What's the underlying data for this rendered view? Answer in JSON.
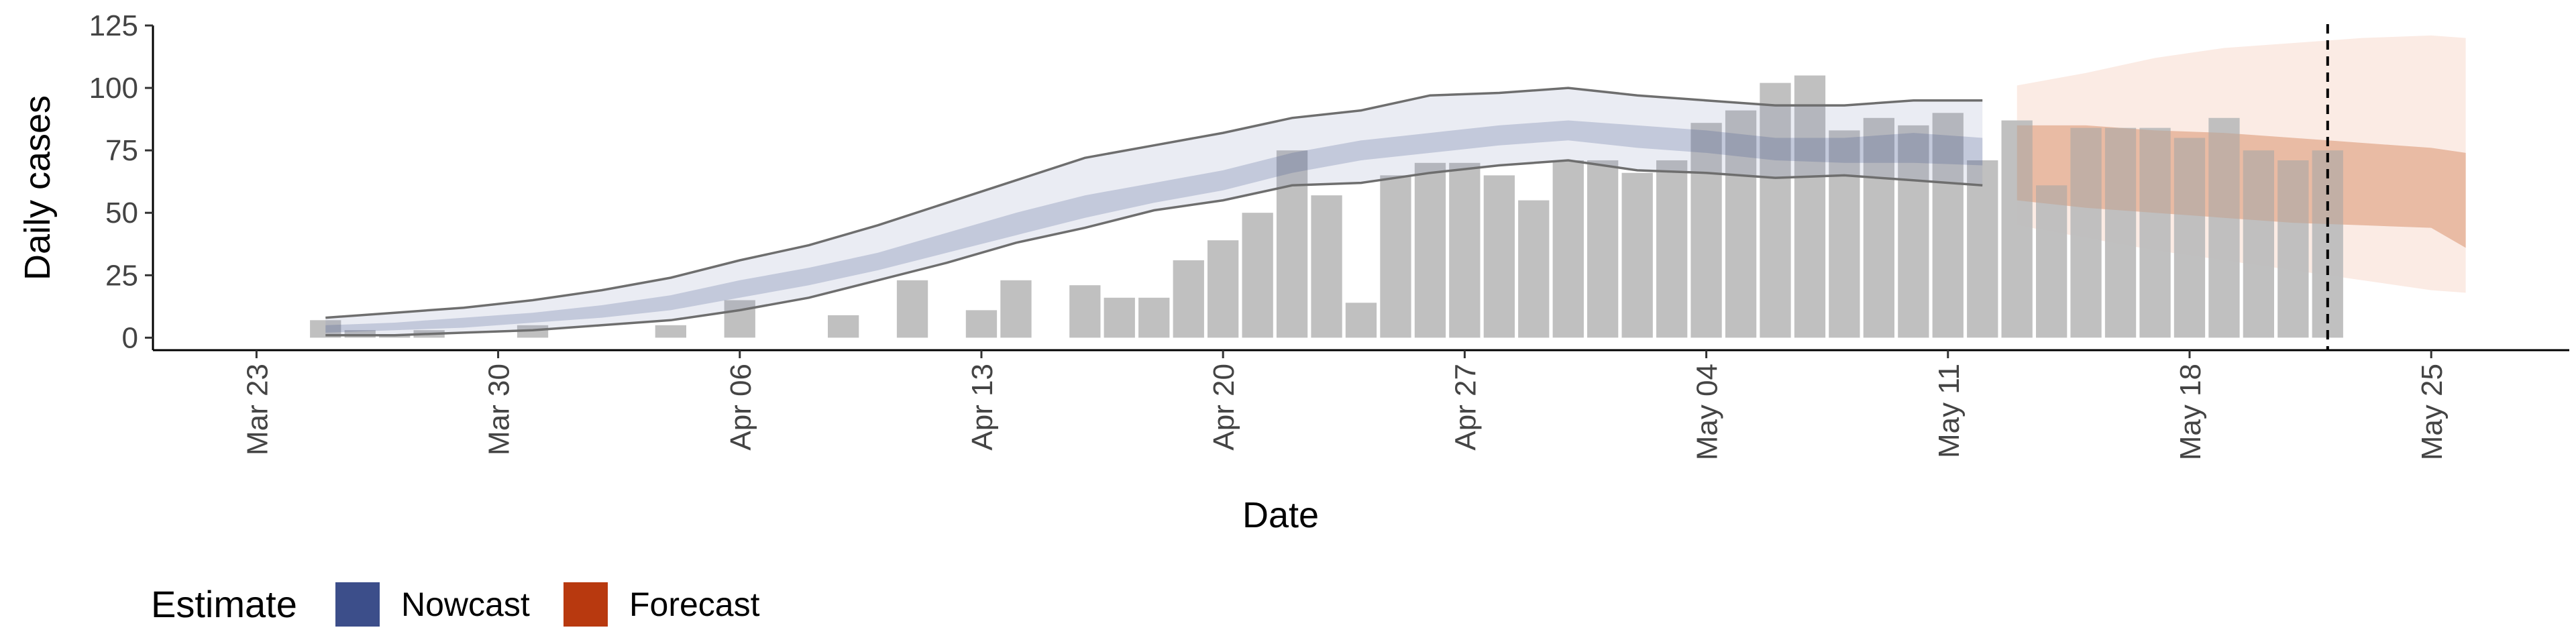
{
  "chart_data": {
    "type": "bar",
    "title": "",
    "xlabel": "Date",
    "ylabel": "Daily cases",
    "ylim": [
      -5,
      125
    ],
    "y_ticks": [
      0,
      25,
      50,
      75,
      100,
      125
    ],
    "xlim": [
      "2020-03-20",
      "2020-05-29"
    ],
    "x_ticks": [
      "2020-03-23",
      "2020-03-30",
      "2020-04-06",
      "2020-04-13",
      "2020-04-20",
      "2020-04-27",
      "2020-05-04",
      "2020-05-11",
      "2020-05-18",
      "2020-05-25"
    ],
    "x_tick_labels": [
      "Mar 23",
      "Mar 30",
      "Apr 06",
      "Apr 13",
      "Apr 20",
      "Apr 27",
      "May 04",
      "May 11",
      "May 18",
      "May 25"
    ],
    "vline_date": "2020-05-22",
    "grid": false,
    "legend": {
      "title": "Estimate",
      "placement": "bottom-left",
      "items": [
        {
          "label": "Nowcast",
          "color": "#3C4E8A"
        },
        {
          "label": "Forecast",
          "color": "#B8390F"
        }
      ]
    },
    "colors": {
      "bar": "#BDBDBD",
      "nowcast_outer": "#E7E9F1",
      "nowcast_inner": "#C5CCDE",
      "nowcast_line": "#6E6E6E",
      "forecast_outer": "#FBEBE4",
      "forecast_inner": "#F2CDBB",
      "vline": "#000000"
    },
    "bars": {
      "name": "Daily cases",
      "x": [
        "2020-03-25",
        "2020-03-26",
        "2020-03-27",
        "2020-03-28",
        "2020-03-29",
        "2020-03-30",
        "2020-03-31",
        "2020-04-01",
        "2020-04-02",
        "2020-04-03",
        "2020-04-04",
        "2020-04-05",
        "2020-04-06",
        "2020-04-07",
        "2020-04-08",
        "2020-04-09",
        "2020-04-10",
        "2020-04-11",
        "2020-04-12",
        "2020-04-13",
        "2020-04-14",
        "2020-04-15",
        "2020-04-16",
        "2020-04-17",
        "2020-04-18",
        "2020-04-19",
        "2020-04-20",
        "2020-04-21",
        "2020-04-22",
        "2020-04-23",
        "2020-04-24",
        "2020-04-25",
        "2020-04-26",
        "2020-04-27",
        "2020-04-28",
        "2020-04-29",
        "2020-04-30",
        "2020-05-01",
        "2020-05-02",
        "2020-05-03",
        "2020-05-04",
        "2020-05-05",
        "2020-05-06",
        "2020-05-07",
        "2020-05-08",
        "2020-05-09",
        "2020-05-10",
        "2020-05-11",
        "2020-05-12",
        "2020-05-13",
        "2020-05-14",
        "2020-05-15",
        "2020-05-16",
        "2020-05-17",
        "2020-05-18",
        "2020-05-19",
        "2020-05-20",
        "2020-05-21",
        "2020-05-22"
      ],
      "values": [
        7,
        3,
        1,
        3,
        0,
        0,
        5,
        0,
        0,
        0,
        5,
        0,
        15,
        0,
        0,
        9,
        0,
        23,
        0,
        11,
        23,
        0,
        21,
        16,
        16,
        31,
        39,
        50,
        75,
        57,
        14,
        65,
        70,
        70,
        65,
        55,
        71,
        71,
        66,
        71,
        86,
        91,
        102,
        105,
        83,
        88,
        85,
        90,
        71,
        87,
        61,
        84,
        84,
        84,
        80,
        88,
        75,
        71,
        75
      ]
    },
    "nowcast": {
      "x": [
        "2020-03-25",
        "2020-03-27",
        "2020-03-29",
        "2020-03-31",
        "2020-04-02",
        "2020-04-04",
        "2020-04-06",
        "2020-04-08",
        "2020-04-10",
        "2020-04-12",
        "2020-04-14",
        "2020-04-16",
        "2020-04-18",
        "2020-04-20",
        "2020-04-22",
        "2020-04-24",
        "2020-04-26",
        "2020-04-28",
        "2020-04-30",
        "2020-05-02",
        "2020-05-04",
        "2020-05-06",
        "2020-05-08",
        "2020-05-10",
        "2020-05-12"
      ],
      "upper_90": [
        8,
        10,
        12,
        15,
        19,
        24,
        31,
        37,
        45,
        54,
        63,
        72,
        77,
        82,
        88,
        91,
        97,
        98,
        100,
        97,
        95,
        93,
        93,
        95,
        95
      ],
      "upper_50": [
        5,
        6,
        8,
        10,
        13,
        17,
        23,
        28,
        34,
        42,
        50,
        57,
        62,
        67,
        74,
        79,
        82,
        85,
        87,
        85,
        83,
        80,
        80,
        82,
        80
      ],
      "lower_50": [
        2,
        3,
        4,
        6,
        8,
        11,
        16,
        21,
        27,
        34,
        41,
        48,
        54,
        59,
        66,
        71,
        74,
        77,
        79,
        76,
        74,
        71,
        70,
        70,
        69
      ],
      "lower_90": [
        1,
        1,
        2,
        3,
        5,
        7,
        11,
        16,
        23,
        30,
        38,
        44,
        51,
        55,
        61,
        62,
        66,
        69,
        71,
        67,
        66,
        64,
        65,
        63,
        61
      ]
    },
    "forecast": {
      "x": [
        "2020-05-13",
        "2020-05-15",
        "2020-05-17",
        "2020-05-19",
        "2020-05-21",
        "2020-05-23",
        "2020-05-25",
        "2020-05-26"
      ],
      "upper_90": [
        101,
        106,
        112,
        116,
        118,
        120,
        121,
        120
      ],
      "upper_50": [
        85,
        85,
        83,
        82,
        80,
        78,
        76,
        74
      ],
      "lower_50": [
        55,
        52,
        50,
        48,
        46,
        45,
        44,
        36
      ],
      "lower_90": [
        45,
        40,
        35,
        31,
        27,
        23,
        19,
        18
      ]
    }
  }
}
